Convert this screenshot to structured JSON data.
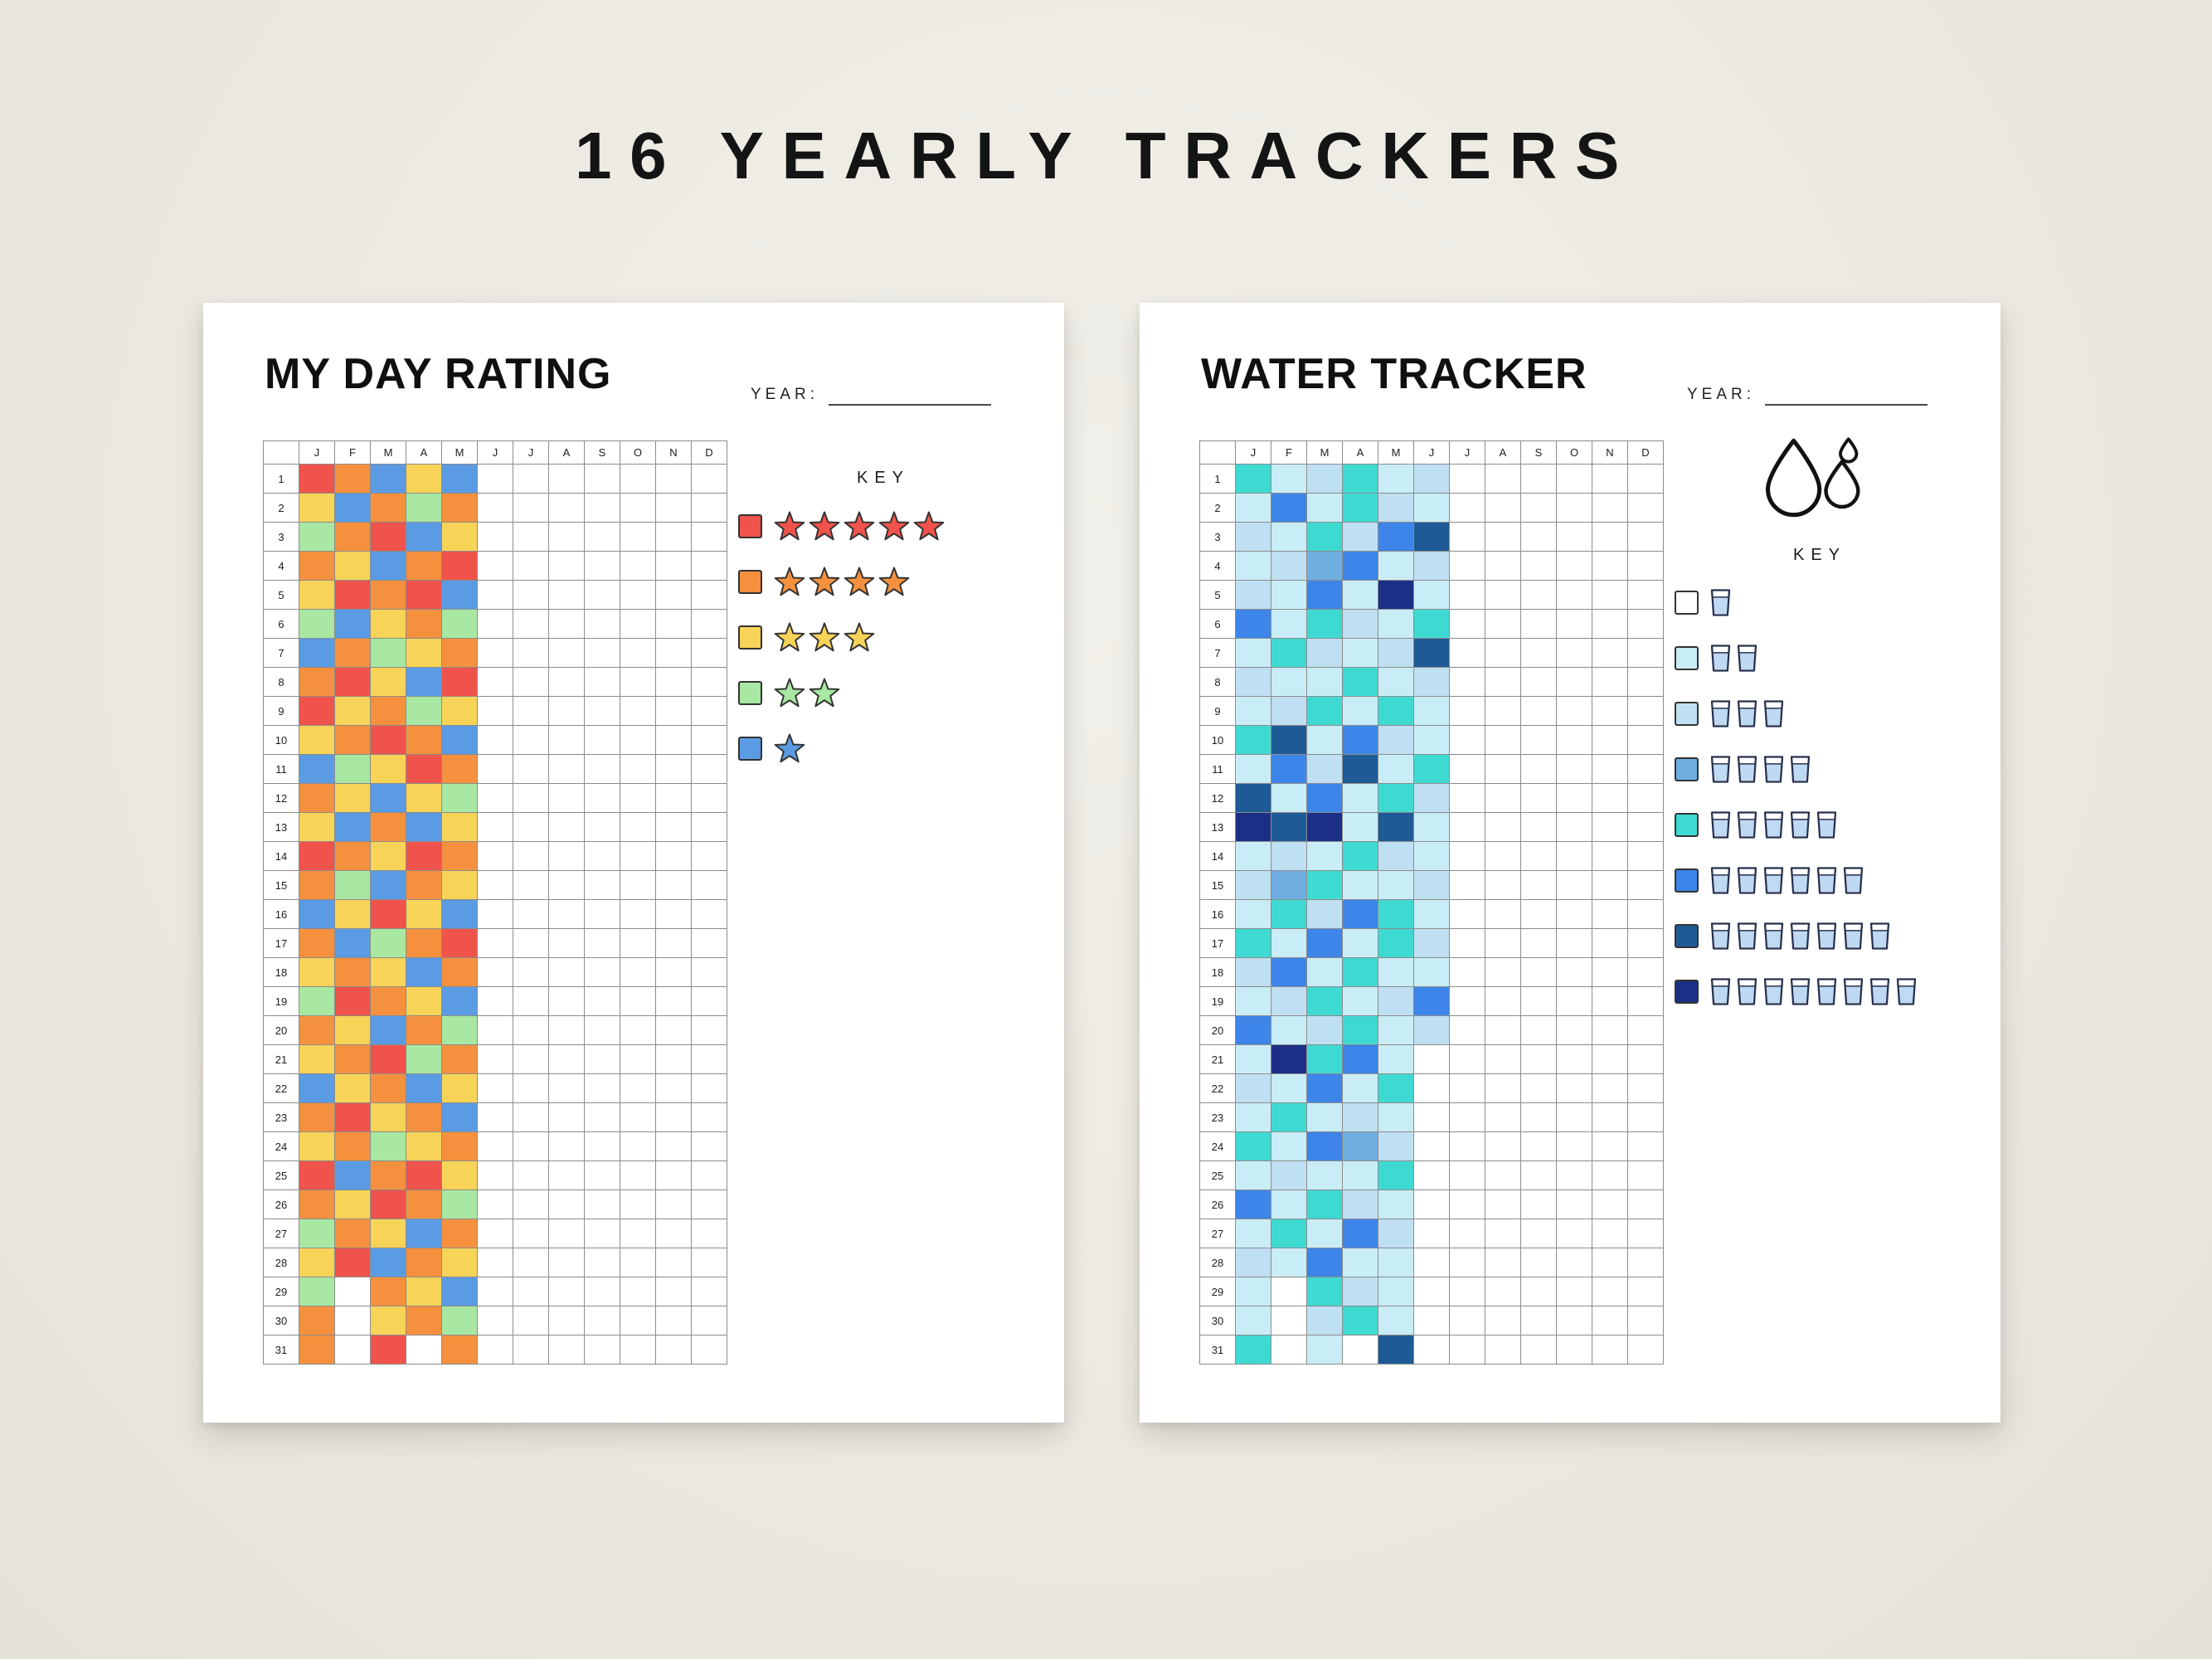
{
  "poster_title": "16 YEARLY TRACKERS",
  "months": [
    "J",
    "F",
    "M",
    "A",
    "M",
    "J",
    "J",
    "A",
    "S",
    "O",
    "N",
    "D"
  ],
  "palette": {
    "R": "#F0534B",
    "O": "#F5913E",
    "Y": "#F7D358",
    "G": "#A8E8A2",
    "B": "#5B9BE4",
    "a": "#FFFFFF",
    "b": "#C9EDF6",
    "c": "#BFDFF2",
    "d": "#6FAEE0",
    "e": "#3EDAD2",
    "f": "#3D85E8",
    "g": "#1E5B96",
    "h": "#1B2F86"
  },
  "trackers": [
    {
      "title": "MY DAY RATING",
      "year_label": "YEAR:",
      "key_title": "KEY",
      "key_icon": "star",
      "key": [
        {
          "code": "R",
          "count": 5
        },
        {
          "code": "O",
          "count": 4
        },
        {
          "code": "Y",
          "count": 3
        },
        {
          "code": "G",
          "count": 2
        },
        {
          "code": "B",
          "count": 1
        }
      ],
      "cells": [
        "ROBYB.......",
        "YBOGO.......",
        "GORBY.......",
        "OYBOR.......",
        "YRORB.......",
        "GBYOG.......",
        "BOGYO.......",
        "ORYBR.......",
        "RYOGY.......",
        "YOROB.......",
        "BGYRO.......",
        "OYBYG.......",
        "YBOBY.......",
        "ROYRO.......",
        "OGBOY.......",
        "BYRYB.......",
        "OBGOR.......",
        "YOYBO.......",
        "GROYB.......",
        "OYBOG.......",
        "YORGO.......",
        "BYOBY.......",
        "ORYOB.......",
        "YOGYO.......",
        "RBORY.......",
        "OYROG.......",
        "GOYBO.......",
        "YRBOY.......",
        "G.OYB.......",
        "O.YOG.......",
        "O.R.O......."
      ]
    },
    {
      "title": "WATER TRACKER",
      "year_label": "YEAR:",
      "key_title": "KEY",
      "key_icon": "glass",
      "key": [
        {
          "code": "a",
          "count": 1
        },
        {
          "code": "b",
          "count": 2
        },
        {
          "code": "c",
          "count": 3
        },
        {
          "code": "d",
          "count": 4
        },
        {
          "code": "e",
          "count": 5
        },
        {
          "code": "f",
          "count": 6
        },
        {
          "code": "g",
          "count": 7
        },
        {
          "code": "h",
          "count": 8
        }
      ],
      "cells": [
        "ebcebc......",
        "bfbecb......",
        "cbecfg......",
        "bcdfbc......",
        "cbfbhb......",
        "fbecbe......",
        "becbcg......",
        "cbbebc......",
        "bcebeb......",
        "egbfcb......",
        "bfcgbe......",
        "gbfbec......",
        "hghbgb......",
        "bcbecb......",
        "cdebbc......",
        "becfeb......",
        "ebfbec......",
        "cfbebb......",
        "bcebcf......",
        "fbcebc......",
        "bhefb.......",
        "cbfbe.......",
        "bebcb.......",
        "ebfdc.......",
        "bcbbe.......",
        "fbecb.......",
        "bebfc.......",
        "cbfbb.......",
        "b.ecb.......",
        "b.ceb.......",
        "e.b.g......."
      ]
    }
  ]
}
